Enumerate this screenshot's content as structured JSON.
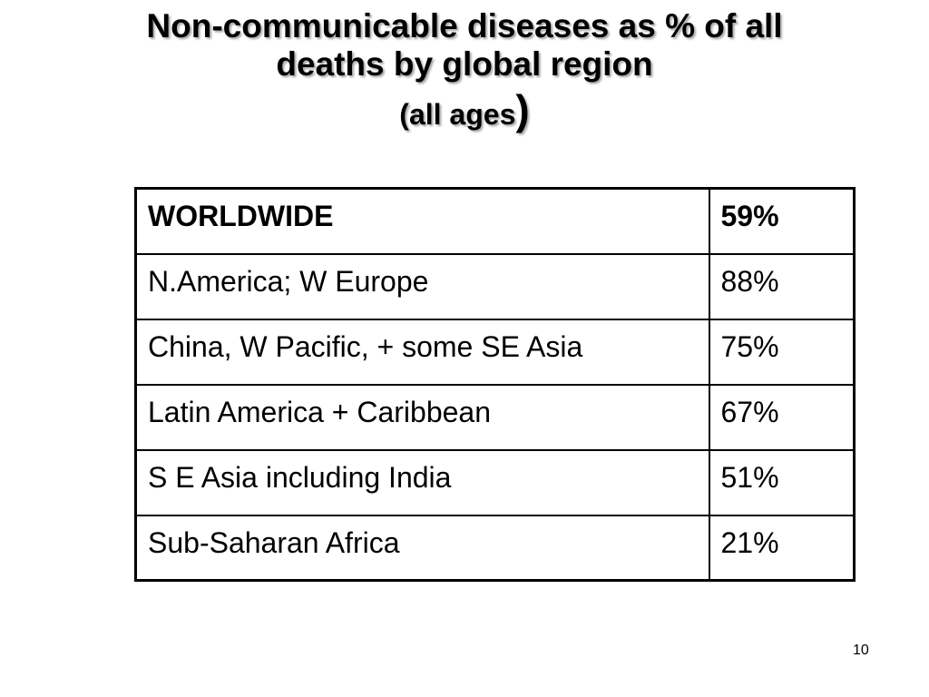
{
  "slide": {
    "title_line1": "Non-communicable diseases as % of all",
    "title_line2": "deaths by global region",
    "title_line3_open": "(",
    "title_line3_text": "all ages",
    "title_line3_close": ")",
    "page_number": "10"
  },
  "table": {
    "rows": [
      {
        "region": "WORLDWIDE",
        "percent": "59%"
      },
      {
        "region": "N.America; W Europe",
        "percent": "88%"
      },
      {
        "region": "China, W Pacific, + some SE Asia",
        "percent": "75%"
      },
      {
        "region": "Latin America + Caribbean",
        "percent": "67%"
      },
      {
        "region": "S E Asia including India",
        "percent": "51%"
      },
      {
        "region": "Sub-Saharan Africa",
        "percent": "21%"
      }
    ]
  }
}
